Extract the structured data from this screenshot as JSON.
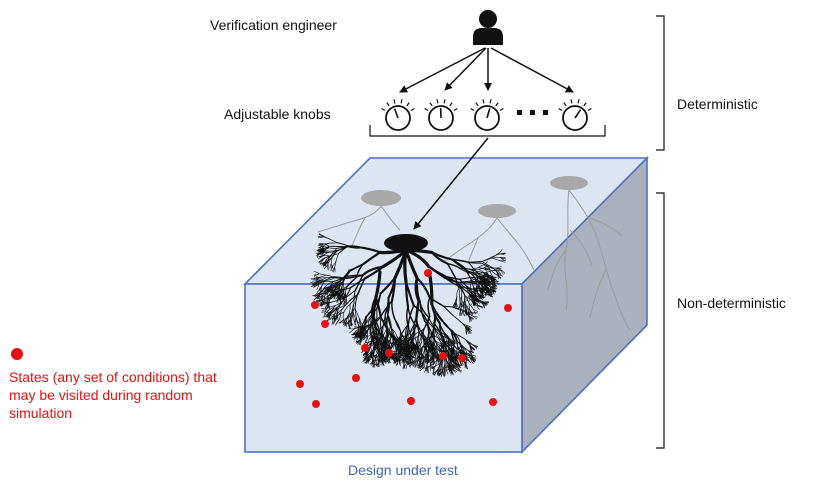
{
  "labels": {
    "engineer": "Verification engineer",
    "knobs": "Adjustable knobs",
    "deterministic": "Deterministic",
    "non_deterministic": "Non-deterministic",
    "design_under_test": "Design under test"
  },
  "legend": {
    "text": "States (any set of conditions) that may be visited during random simulation"
  },
  "icons": {
    "person": "person-icon",
    "knob": "knob-dial-icon",
    "ellipsis": "ellipsis-icon",
    "state": "state-dot-icon"
  },
  "colors": {
    "box_fill": "#dde5f3",
    "box_side": "#aab0bc",
    "box_edge": "#4a73c2",
    "state_dot": "#e41212",
    "dut_label": "#3f66b3",
    "ink": "#111111"
  }
}
